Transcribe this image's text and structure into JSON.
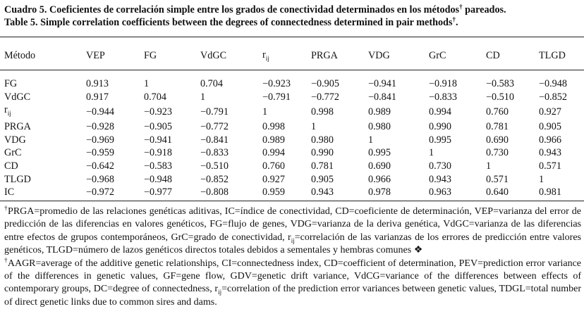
{
  "caption": {
    "es_prefix": "Cuadro 5. Coeficientes de correlación simple entre los grados de conectividad determinados en los métodos",
    "es_mark": "†",
    "es_suffix": " pareados.",
    "en_prefix": "Table 5. Simple correlation coefficients between the degrees of connectedness determined in pair methods",
    "en_mark": "†",
    "en_suffix": "."
  },
  "table": {
    "columns": [
      "Método",
      "VEP",
      "FG",
      "VdGC",
      "r",
      "PRGA",
      "VDG",
      "GrC",
      "CD",
      "TLGD"
    ],
    "rows": [
      {
        "label": "FG",
        "values": [
          "0.913",
          "1",
          "0.704",
          "−0.923",
          "−0.905",
          "−0.941",
          "−0.918",
          "−0.583",
          "−0.948"
        ]
      },
      {
        "label": "VdGC",
        "values": [
          "0.917",
          "0.704",
          "1",
          "−0.791",
          "−0.772",
          "−0.841",
          "−0.833",
          "−0.510",
          "−0.852"
        ]
      },
      {
        "label": "r",
        "values": [
          "−0.944",
          "−0.923",
          "−0.791",
          "1",
          "0.998",
          "0.989",
          "0.994",
          "0.760",
          "0.927"
        ]
      },
      {
        "label": "PRGA",
        "values": [
          "−0.928",
          "−0.905",
          "−0.772",
          "0.998",
          "1",
          "0.980",
          "0.990",
          "0.781",
          "0.905"
        ]
      },
      {
        "label": "VDG",
        "values": [
          "−0.969",
          "−0.941",
          "−0.841",
          "0.989",
          "0.980",
          "1",
          "0.995",
          "0.690",
          "0.966"
        ]
      },
      {
        "label": "GrC",
        "values": [
          "−0.959",
          "−0.918",
          "−0.833",
          "0.994",
          "0.990",
          "0.995",
          "1",
          "0.730",
          "0.943"
        ]
      },
      {
        "label": "CD",
        "values": [
          "−0.642",
          "−0.583",
          "−0.510",
          "0.760",
          "0.781",
          "0.690",
          "0.730",
          "1",
          "0.571"
        ]
      },
      {
        "label": "TLGD",
        "values": [
          "−0.968",
          "−0.948",
          "−0.852",
          "0.927",
          "0.905",
          "0.966",
          "0.943",
          "0.571",
          "1"
        ]
      },
      {
        "label": "IC",
        "values": [
          "−0.972",
          "−0.977",
          "−0.808",
          "0.959",
          "0.943",
          "0.978",
          "0.963",
          "0.640",
          "0.981"
        ]
      }
    ],
    "rij_subscript": "ij"
  },
  "notes": {
    "es_mark": "†",
    "es_part1": "PRGA=promedio de las relaciones genéticas aditivas, IC=índice de conectividad, CD=coeficiente de determinación, VEP=varianza del error de predicción de las diferencias en valores genéticos, FG=flujo de genes, VDG=varianza de la deriva genética, VdGC=varianza de las diferencias entre efectos de grupos contemporáneos, GrC=grado de conectividad, r",
    "es_sub": "ij",
    "es_part2": "=correlación de las varianzas de los errores de predicción entre valores genéticos, TLGD=número de lazos genéticos directos totales debidos a sementales y hembras comunes ❖",
    "en_mark": "†",
    "en_part1": "AAGR=average of the additive genetic relationships, CI=connectedness index, CD=coefficient of determination, PEV=prediction error variance of the differences in genetic values, GF=gene flow, GDV=genetic drift variance, VdCG=variance of the differences between effects of contemporary groups, DC=degree of connectedness, r",
    "en_sub": "ij",
    "en_part2": "=correlation of the prediction error variances between genetic values, TDGL=total number of direct genetic links due to common sires and dams."
  }
}
